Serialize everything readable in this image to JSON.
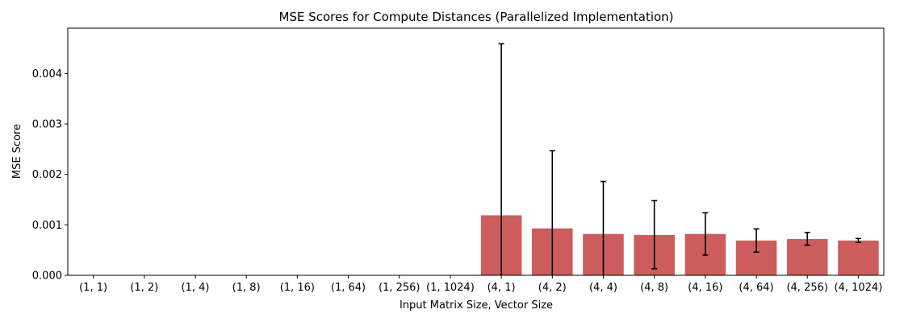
{
  "chart_data": {
    "type": "bar",
    "title": "MSE Scores for Compute Distances (Parallelized Implementation)",
    "xlabel": "Input Matrix Size, Vector Size",
    "ylabel": "MSE Score",
    "categories": [
      "(1, 1)",
      "(1, 2)",
      "(1, 4)",
      "(1, 8)",
      "(1, 16)",
      "(1, 64)",
      "(1, 256)",
      "(1, 1024)",
      "(4, 1)",
      "(4, 2)",
      "(4, 4)",
      "(4, 8)",
      "(4, 16)",
      "(4, 64)",
      "(4, 256)",
      "(4, 1024)"
    ],
    "values": [
      0,
      0,
      0,
      0,
      0,
      0,
      0,
      0,
      0.00119,
      0.00093,
      0.00082,
      0.0008,
      0.00082,
      0.00069,
      0.00072,
      0.00069
    ],
    "error_low": [
      0,
      0,
      0,
      0,
      0,
      0,
      0,
      0,
      0,
      0,
      0,
      0.00013,
      0.0004,
      0.00046,
      0.0006,
      0.00065
    ],
    "error_high": [
      0,
      0,
      0,
      0,
      0,
      0,
      0,
      0,
      0.00459,
      0.00247,
      0.00186,
      0.00148,
      0.00124,
      0.00092,
      0.00085,
      0.00073
    ],
    "ylim": [
      0,
      0.0049
    ],
    "yticks": [
      0,
      0.001,
      0.002,
      0.003,
      0.004
    ],
    "ytick_labels": [
      "0.000",
      "0.001",
      "0.002",
      "0.003",
      "0.004"
    ],
    "bar_color": "#cd5c5c",
    "error_color": "#000000",
    "grid": false,
    "legend": "none"
  }
}
